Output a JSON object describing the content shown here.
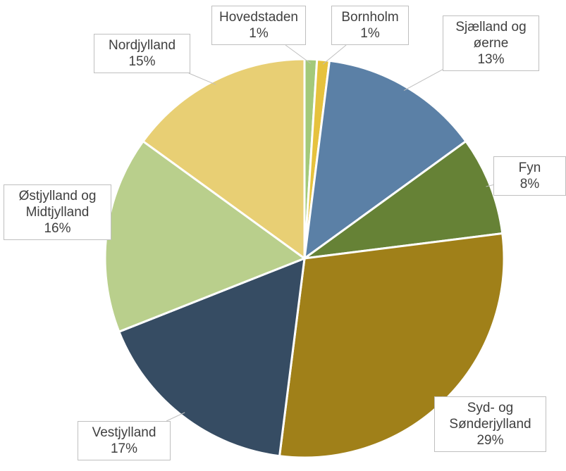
{
  "chart_data": {
    "type": "pie",
    "categories": [
      "Hovedstaden",
      "Bornholm",
      "Sjælland og øerne",
      "Fyn",
      "Syd- og Sønderjylland",
      "Vestjylland",
      "Østjylland og Midtjylland",
      "Nordjylland"
    ],
    "values": [
      1,
      1,
      13,
      8,
      29,
      17,
      16,
      15
    ],
    "value_labels": [
      "1%",
      "1%",
      "13%",
      "8%",
      "29%",
      "17%",
      "16%",
      "15%"
    ],
    "colors": [
      "#a3c97a",
      "#e6c23e",
      "#5b80a6",
      "#668236",
      "#a08019",
      "#364c63",
      "#b9cf8c",
      "#e8cf74"
    ]
  }
}
